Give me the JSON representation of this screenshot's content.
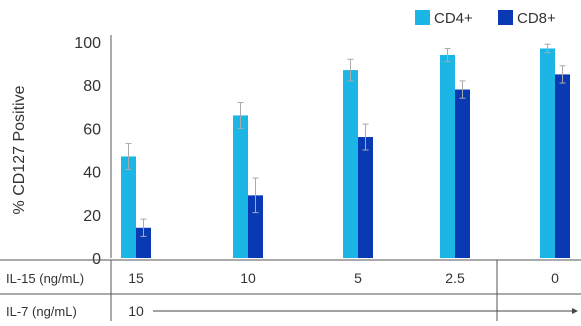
{
  "chart_data": {
    "type": "bar",
    "ylabel": "% CD127 Positive",
    "ylim": [
      0,
      100
    ],
    "yticks": [
      0,
      20,
      40,
      60,
      80,
      100
    ],
    "categories": [
      "15",
      "10",
      "5",
      "2.5",
      "0"
    ],
    "series": [
      {
        "name": "CD4+",
        "color": "#1bb5e6",
        "values": [
          47,
          66,
          87,
          94,
          97
        ],
        "errors": [
          6,
          6,
          5,
          3,
          2
        ]
      },
      {
        "name": "CD8+",
        "color": "#0a3ab3",
        "values": [
          14,
          29,
          56,
          78,
          85
        ],
        "errors": [
          4,
          8,
          6,
          4,
          4
        ]
      }
    ],
    "legend": {
      "placement": "top-right"
    },
    "grid": false,
    "rows": [
      {
        "label": "IL-15 (ng/mL)",
        "values": [
          "15",
          "10",
          "5",
          "2.5",
          "0"
        ]
      },
      {
        "label": "IL-7 (ng/mL)",
        "value": "10"
      }
    ]
  }
}
